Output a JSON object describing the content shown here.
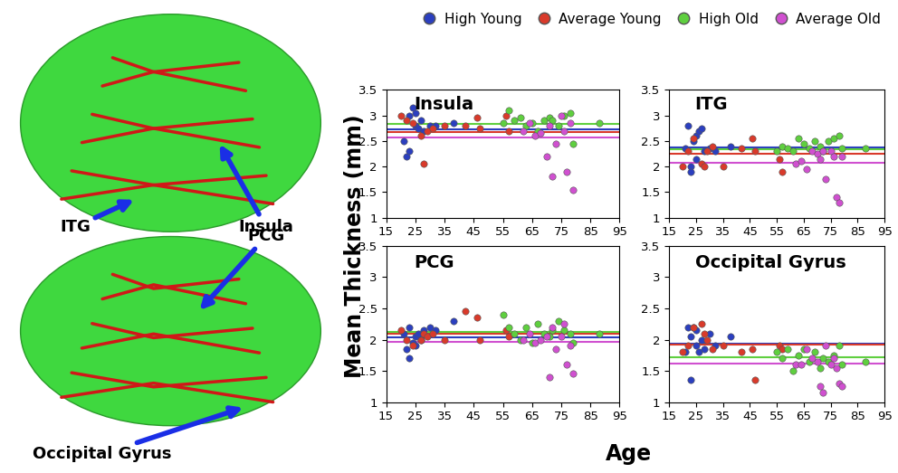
{
  "xlabel": "Age",
  "ylabel": "Mean Thickness (mm)",
  "legend": "upper right",
  "brain_labels": [
    "Insula",
    "ITG",
    "PCG",
    "Occipital Gyrus"
  ],
  "chart_data": [
    {
      "type": "scatter",
      "title": "Insula",
      "xlim": [
        15,
        95
      ],
      "ylim": [
        1,
        3.5
      ],
      "xticks": [
        15,
        25,
        35,
        45,
        55,
        65,
        75,
        85,
        95
      ],
      "yticks": [
        1,
        1.5,
        2,
        2.5,
        3,
        3.5
      ],
      "series": [
        {
          "name": "High Young",
          "color": "#2b3fbf",
          "mean": 2.72,
          "x": [
            21,
            22,
            23,
            23,
            24,
            25,
            25,
            26,
            27,
            28,
            30,
            32,
            38
          ],
          "values": [
            2.5,
            2.2,
            2.3,
            3.0,
            3.15,
            2.8,
            3.05,
            2.75,
            2.9,
            2.7,
            2.8,
            2.8,
            2.85
          ]
        },
        {
          "name": "Average Young",
          "color": "#d93a2b",
          "mean": 2.68,
          "x": [
            20,
            22,
            24,
            27,
            28,
            29,
            31,
            35,
            42,
            46,
            47,
            56,
            57
          ],
          "values": [
            3.0,
            2.9,
            2.85,
            2.6,
            2.05,
            2.7,
            2.75,
            2.8,
            2.8,
            2.95,
            2.75,
            3.0,
            2.7
          ]
        },
        {
          "name": "High Old",
          "color": "#5fcf3f",
          "mean": 2.83,
          "x": [
            55,
            57,
            59,
            61,
            63,
            65,
            67,
            69,
            71,
            72,
            74,
            76,
            78,
            79,
            88
          ],
          "values": [
            2.85,
            3.1,
            2.9,
            2.95,
            2.8,
            2.85,
            2.7,
            2.9,
            2.95,
            2.9,
            2.8,
            3.0,
            3.05,
            2.45,
            2.85
          ]
        },
        {
          "name": "Average Old",
          "color": "#d050d0",
          "mean": 2.57,
          "x": [
            62,
            64,
            66,
            68,
            70,
            71,
            72,
            73,
            75,
            76,
            77,
            78,
            79
          ],
          "values": [
            2.7,
            2.85,
            2.6,
            2.65,
            2.2,
            2.8,
            1.8,
            2.45,
            3.0,
            2.7,
            1.9,
            2.85,
            1.55
          ]
        }
      ]
    },
    {
      "type": "scatter",
      "title": "ITG",
      "xlim": [
        15,
        95
      ],
      "ylim": [
        1,
        3.5
      ],
      "xticks": [
        15,
        25,
        35,
        45,
        55,
        65,
        75,
        85,
        95
      ],
      "yticks": [
        1,
        1.5,
        2,
        2.5,
        3,
        3.5
      ],
      "series": [
        {
          "name": "High Young",
          "color": "#2b3fbf",
          "mean": 2.38,
          "x": [
            21,
            22,
            23,
            23,
            24,
            25,
            25,
            26,
            27,
            28,
            30,
            32,
            38
          ],
          "values": [
            2.35,
            2.8,
            2.0,
            1.9,
            2.5,
            2.6,
            2.15,
            2.7,
            2.75,
            2.3,
            2.35,
            2.3,
            2.4
          ]
        },
        {
          "name": "Average Young",
          "color": "#d93a2b",
          "mean": 2.25,
          "x": [
            20,
            22,
            24,
            27,
            28,
            29,
            31,
            35,
            42,
            46,
            47,
            56,
            57
          ],
          "values": [
            2.0,
            2.3,
            2.55,
            2.05,
            2.0,
            2.3,
            2.4,
            2.0,
            2.35,
            2.55,
            2.3,
            2.15,
            1.9
          ]
        },
        {
          "name": "High Old",
          "color": "#5fcf3f",
          "mean": 2.34,
          "x": [
            55,
            57,
            59,
            61,
            63,
            65,
            67,
            69,
            71,
            72,
            74,
            76,
            78,
            79,
            88
          ],
          "values": [
            2.3,
            2.4,
            2.35,
            2.3,
            2.55,
            2.45,
            2.35,
            2.5,
            2.4,
            2.3,
            2.5,
            2.55,
            2.6,
            2.35,
            2.35
          ]
        },
        {
          "name": "Average Old",
          "color": "#d050d0",
          "mean": 2.07,
          "x": [
            62,
            64,
            66,
            68,
            70,
            71,
            72,
            73,
            75,
            76,
            77,
            78,
            79
          ],
          "values": [
            2.05,
            2.1,
            1.95,
            2.3,
            2.25,
            2.15,
            2.3,
            1.75,
            2.3,
            2.2,
            1.4,
            1.3,
            2.2
          ]
        }
      ]
    },
    {
      "type": "scatter",
      "title": "PCG",
      "xlim": [
        15,
        95
      ],
      "ylim": [
        1,
        3.5
      ],
      "xticks": [
        15,
        25,
        35,
        45,
        55,
        65,
        75,
        85,
        95
      ],
      "yticks": [
        1,
        1.5,
        2,
        2.5,
        3,
        3.5
      ],
      "series": [
        {
          "name": "High Young",
          "color": "#2b3fbf",
          "mean": 2.04,
          "x": [
            21,
            22,
            23,
            23,
            24,
            25,
            25,
            26,
            27,
            28,
            30,
            32,
            38
          ],
          "values": [
            2.1,
            1.85,
            1.7,
            2.2,
            1.95,
            2.05,
            1.9,
            2.1,
            2.0,
            2.15,
            2.2,
            2.15,
            2.3
          ]
        },
        {
          "name": "Average Young",
          "color": "#d93a2b",
          "mean": 2.09,
          "x": [
            20,
            22,
            24,
            27,
            28,
            29,
            31,
            35,
            42,
            46,
            47,
            56,
            57
          ],
          "values": [
            2.15,
            2.0,
            1.9,
            2.0,
            2.1,
            2.05,
            2.1,
            2.0,
            2.45,
            2.35,
            2.0,
            2.15,
            2.05
          ]
        },
        {
          "name": "High Old",
          "color": "#5fcf3f",
          "mean": 2.13,
          "x": [
            55,
            57,
            59,
            61,
            63,
            65,
            67,
            69,
            71,
            72,
            74,
            76,
            78,
            79,
            88
          ],
          "values": [
            2.4,
            2.2,
            2.1,
            2.0,
            2.2,
            1.95,
            2.25,
            2.1,
            2.05,
            2.15,
            2.3,
            2.15,
            2.1,
            1.95,
            2.1
          ]
        },
        {
          "name": "Average Old",
          "color": "#d050d0",
          "mean": 1.96,
          "x": [
            62,
            64,
            66,
            68,
            70,
            71,
            72,
            73,
            75,
            76,
            77,
            78,
            79
          ],
          "values": [
            2.0,
            2.1,
            1.95,
            2.0,
            2.05,
            1.4,
            2.2,
            1.85,
            2.05,
            2.25,
            1.6,
            1.9,
            1.45
          ]
        }
      ]
    },
    {
      "type": "scatter",
      "title": "Occipital Gyrus",
      "xlim": [
        15,
        95
      ],
      "ylim": [
        1,
        3.5
      ],
      "xticks": [
        15,
        25,
        35,
        45,
        55,
        65,
        75,
        85,
        95
      ],
      "yticks": [
        1,
        1.5,
        2,
        2.5,
        3,
        3.5
      ],
      "series": [
        {
          "name": "High Young",
          "color": "#2b3fbf",
          "mean": 1.93,
          "x": [
            21,
            22,
            23,
            23,
            24,
            25,
            25,
            26,
            27,
            28,
            30,
            32,
            38
          ],
          "values": [
            1.8,
            2.2,
            2.05,
            1.35,
            2.2,
            1.9,
            2.15,
            1.8,
            2.0,
            1.85,
            2.1,
            1.9,
            2.05
          ]
        },
        {
          "name": "Average Young",
          "color": "#d93a2b",
          "mean": 1.92,
          "x": [
            20,
            22,
            24,
            27,
            28,
            29,
            31,
            35,
            42,
            46,
            47,
            56,
            57
          ],
          "values": [
            1.8,
            1.9,
            2.2,
            2.25,
            2.1,
            2.0,
            1.85,
            1.9,
            1.8,
            1.85,
            1.35,
            1.9,
            1.85
          ]
        },
        {
          "name": "High Old",
          "color": "#5fcf3f",
          "mean": 1.72,
          "x": [
            55,
            57,
            59,
            61,
            63,
            65,
            67,
            69,
            71,
            72,
            74,
            76,
            78,
            79,
            88
          ],
          "values": [
            1.8,
            1.7,
            1.85,
            1.5,
            1.75,
            1.85,
            1.65,
            1.8,
            1.55,
            1.7,
            1.65,
            1.75,
            1.9,
            1.6,
            1.65
          ]
        },
        {
          "name": "Average Old",
          "color": "#d050d0",
          "mean": 1.62,
          "x": [
            62,
            64,
            66,
            68,
            70,
            71,
            72,
            73,
            75,
            76,
            77,
            78,
            79
          ],
          "values": [
            1.6,
            1.6,
            1.85,
            1.7,
            1.65,
            1.25,
            1.15,
            1.9,
            1.6,
            1.7,
            1.55,
            1.3,
            1.25
          ]
        }
      ]
    }
  ]
}
